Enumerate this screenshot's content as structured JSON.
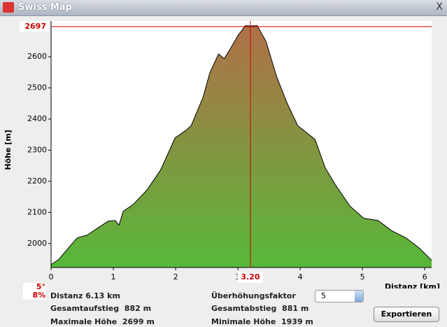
{
  "window": {
    "title": "Swiss Map",
    "close": "X"
  },
  "chart_data": {
    "type": "area",
    "x_label": "Distanz [km]",
    "y_label": "Höhe [m]",
    "x": [
      0,
      0.13,
      0.3,
      0.42,
      0.58,
      0.75,
      0.92,
      1.03,
      1.09,
      1.16,
      1.31,
      1.54,
      1.76,
      1.99,
      2.16,
      2.25,
      2.44,
      2.55,
      2.69,
      2.78,
      2.87,
      3.0,
      3.12,
      3.2,
      3.31,
      3.45,
      3.62,
      3.79,
      3.96,
      4.03,
      4.24,
      4.4,
      4.57,
      4.8,
      5.02,
      5.25,
      5.47,
      5.7,
      5.92,
      6.11
    ],
    "values": [
      1932,
      1950,
      1991,
      2018,
      2027,
      2050,
      2072,
      2074,
      2059,
      2104,
      2124,
      2172,
      2237,
      2339,
      2363,
      2379,
      2470,
      2549,
      2609,
      2594,
      2623,
      2668,
      2700,
      2699,
      2700,
      2650,
      2537,
      2451,
      2379,
      2368,
      2334,
      2244,
      2187,
      2120,
      2081,
      2074,
      2041,
      2018,
      1984,
      1946
    ],
    "color_top": "#b07048",
    "color_bottom": "#58b83a",
    "xlim": [
      0,
      6.11
    ],
    "ylim": [
      1923,
      2715
    ],
    "xticks": [
      0,
      1,
      2,
      3,
      4,
      5,
      6
    ],
    "yticks": [
      2000,
      2100,
      2200,
      2300,
      2400,
      2500,
      2600
    ],
    "cursor": {
      "x": {
        "value": 3.2,
        "label": "3.20"
      },
      "y": 2697,
      "color": "#cc0000"
    },
    "slope": {
      "degrees": "5°",
      "percent": "8%"
    }
  },
  "info": {
    "distance": "Distanz 6.13 km",
    "ascent": "Gesamtaufstieg  882 m",
    "max": "Maximale Höhe  2699 m",
    "exaggeration_label": "Überhöhungsfaktor",
    "exaggeration": "5",
    "descent": "Gesamtabstieg  881 m",
    "min": "Minimale Höhe  1939 m",
    "export": "Exportieren"
  }
}
